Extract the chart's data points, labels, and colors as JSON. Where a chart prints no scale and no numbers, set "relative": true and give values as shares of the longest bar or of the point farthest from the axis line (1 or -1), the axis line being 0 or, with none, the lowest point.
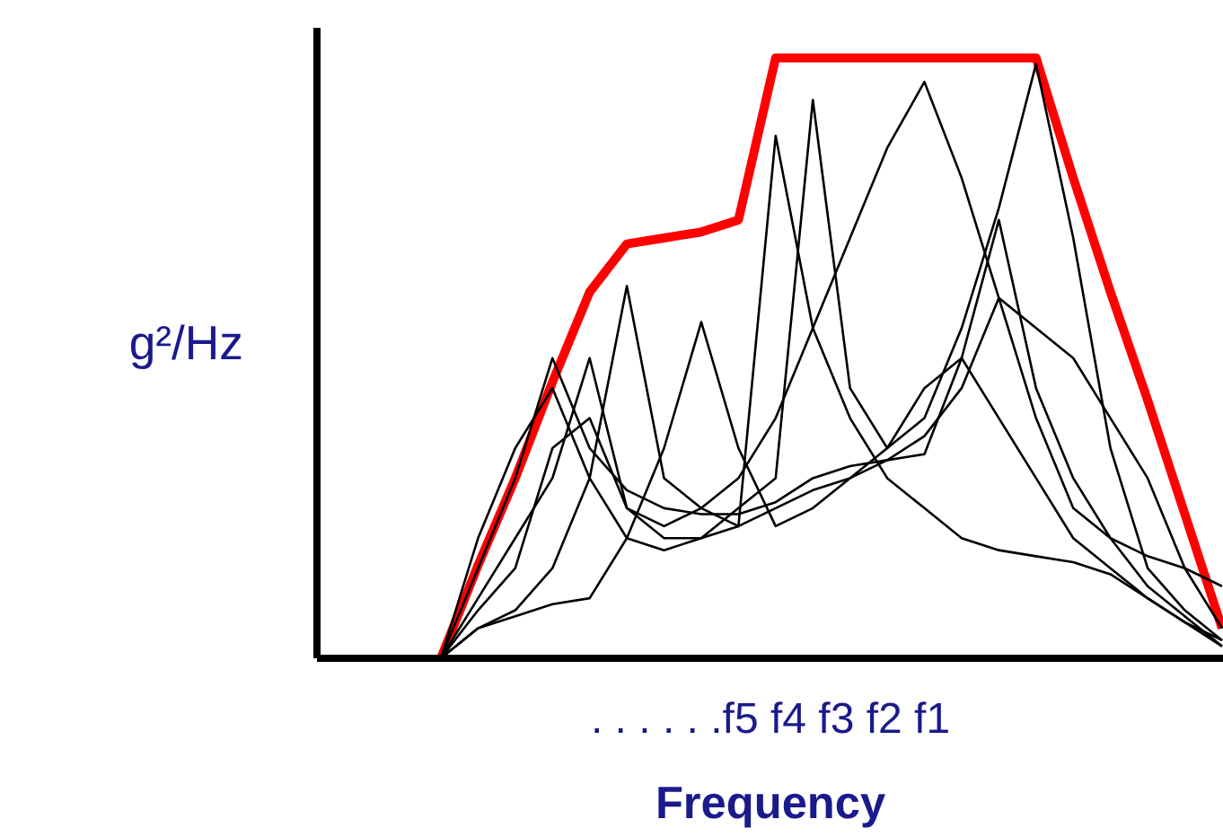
{
  "chart_data": {
    "type": "line",
    "relative": true,
    "ylabel": "g²/Hz",
    "xlabel": "Frequency",
    "annotations": [
      ". . . . . .f5 f4 f3 f2 f1"
    ],
    "categories": [
      null,
      null,
      null,
      null,
      null,
      null,
      null,
      null,
      null,
      null,
      null,
      null,
      null,
      null,
      null,
      null,
      null,
      null,
      null,
      null,
      null,
      null
    ],
    "series": [
      {
        "color": "#ff0000",
        "values": [
          0,
          0.155,
          0.3,
          0.46,
          0.61,
          0.69,
          0.7,
          0.71,
          0.73,
          1.0,
          1.0,
          1.0,
          1.0,
          1.0,
          1.0,
          1.0,
          1.0,
          0.8,
          0.61,
          0.43,
          0.24,
          0.05
        ]
      },
      {
        "color": "#000000",
        "values": [
          0,
          0.2,
          0.35,
          0.45,
          0.3,
          0.2,
          0.18,
          0.2,
          0.22,
          0.25,
          0.28,
          0.3,
          0.35,
          0.45,
          0.5,
          0.4,
          0.3,
          0.2,
          0.15,
          0.1,
          0.06,
          0.03
        ]
      },
      {
        "color": "#000000",
        "values": [
          0,
          0.1,
          0.2,
          0.3,
          0.5,
          0.25,
          0.22,
          0.25,
          0.3,
          0.4,
          0.55,
          0.7,
          0.85,
          0.96,
          0.8,
          0.6,
          0.4,
          0.25,
          0.2,
          0.17,
          0.15,
          0.12
        ]
      },
      {
        "color": "#000000",
        "values": [
          0,
          0.05,
          0.08,
          0.15,
          0.3,
          0.62,
          0.3,
          0.25,
          0.22,
          0.87,
          0.55,
          0.4,
          0.3,
          0.25,
          0.2,
          0.18,
          0.17,
          0.16,
          0.14,
          0.1,
          0.06,
          0.02
        ]
      },
      {
        "color": "#000000",
        "values": [
          0,
          0.05,
          0.07,
          0.09,
          0.1,
          0.2,
          0.35,
          0.56,
          0.35,
          0.22,
          0.25,
          0.3,
          0.33,
          0.37,
          0.45,
          0.6,
          0.55,
          0.5,
          0.4,
          0.3,
          0.15,
          0.05
        ]
      },
      {
        "color": "#000000",
        "values": [
          0,
          0.08,
          0.15,
          0.35,
          0.4,
          0.25,
          0.2,
          0.2,
          0.25,
          0.3,
          0.93,
          0.45,
          0.35,
          0.4,
          0.55,
          0.75,
          0.99,
          0.7,
          0.35,
          0.15,
          0.08,
          0.03
        ]
      },
      {
        "color": "#000000",
        "values": [
          0,
          0.15,
          0.3,
          0.5,
          0.35,
          0.28,
          0.25,
          0.24,
          0.24,
          0.26,
          0.3,
          0.32,
          0.33,
          0.34,
          0.5,
          0.73,
          0.45,
          0.3,
          0.2,
          0.12,
          0.07,
          0.02
        ]
      }
    ]
  }
}
